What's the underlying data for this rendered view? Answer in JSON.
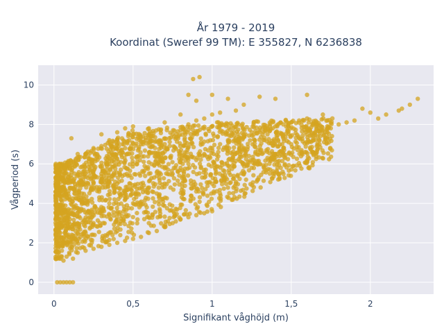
{
  "chart_data": {
    "type": "scatter",
    "title_lines": [
      "År 1979 - 2019",
      "Koordinat (Sweref 99 TM): E 355827, N 6236838"
    ],
    "xlabel": "Signifikant våghöjd (m)",
    "ylabel": "Vågperiod (s)",
    "xlim": [
      -0.1,
      2.4
    ],
    "ylim": [
      -0.6,
      11
    ],
    "x_ticks": [
      0,
      0.5,
      1,
      1.5,
      2
    ],
    "x_tick_labels": [
      "0",
      "0,5",
      "1",
      "1,5",
      "2"
    ],
    "y_ticks": [
      0,
      2,
      4,
      6,
      8,
      10
    ],
    "y_tick_labels": [
      "0",
      "2",
      "4",
      "6",
      "8",
      "10"
    ],
    "grid": true,
    "marker_color": "#D4A420",
    "marker_opacity": 0.75,
    "plot_background": "#E8E8F0",
    "series": [
      {
        "points": [
          [
            0.02,
            0
          ],
          [
            0.04,
            0
          ],
          [
            0.06,
            0
          ],
          [
            0.08,
            0
          ],
          [
            0.1,
            0
          ],
          [
            0.12,
            0
          ],
          [
            0.02,
            1.2
          ],
          [
            0.03,
            1.5
          ],
          [
            0.04,
            2.5
          ],
          [
            0.05,
            3.5
          ],
          [
            0.03,
            4.5
          ],
          [
            0.04,
            5.5
          ],
          [
            0.05,
            6
          ],
          [
            0.06,
            1.1
          ],
          [
            0.08,
            1.3
          ],
          [
            0.1,
            2.8
          ],
          [
            0.1,
            4.2
          ],
          [
            0.1,
            5.8
          ],
          [
            0.11,
            7.3
          ],
          [
            0.12,
            1.2
          ],
          [
            0.15,
            1.5
          ],
          [
            0.15,
            3
          ],
          [
            0.15,
            5
          ],
          [
            0.15,
            6.5
          ],
          [
            0.2,
            1.6
          ],
          [
            0.2,
            2.5
          ],
          [
            0.2,
            4
          ],
          [
            0.2,
            5.5
          ],
          [
            0.2,
            6.5
          ],
          [
            0.25,
            1.7
          ],
          [
            0.25,
            3
          ],
          [
            0.25,
            5
          ],
          [
            0.25,
            6.8
          ],
          [
            0.3,
            1.8
          ],
          [
            0.3,
            3.5
          ],
          [
            0.3,
            5.5
          ],
          [
            0.3,
            6.9
          ],
          [
            0.3,
            7.5
          ],
          [
            0.35,
            1.9
          ],
          [
            0.35,
            4
          ],
          [
            0.35,
            6.5
          ],
          [
            0.35,
            7.2
          ],
          [
            0.4,
            2
          ],
          [
            0.4,
            3.5
          ],
          [
            0.4,
            5
          ],
          [
            0.4,
            7
          ],
          [
            0.4,
            7.6
          ],
          [
            0.45,
            2.1
          ],
          [
            0.45,
            4.5
          ],
          [
            0.45,
            6.8
          ],
          [
            0.45,
            7.8
          ],
          [
            0.5,
            2.2
          ],
          [
            0.5,
            4
          ],
          [
            0.5,
            6
          ],
          [
            0.5,
            7.5
          ],
          [
            0.5,
            7.9
          ],
          [
            0.55,
            2.3
          ],
          [
            0.55,
            5
          ],
          [
            0.55,
            7
          ],
          [
            0.6,
            2.5
          ],
          [
            0.6,
            3
          ],
          [
            0.6,
            5.5
          ],
          [
            0.6,
            7.3
          ],
          [
            0.6,
            7.8
          ],
          [
            0.65,
            2.6
          ],
          [
            0.65,
            4.5
          ],
          [
            0.65,
            6.5
          ],
          [
            0.7,
            2.8
          ],
          [
            0.7,
            5
          ],
          [
            0.7,
            7
          ],
          [
            0.7,
            8.1
          ],
          [
            0.75,
            3
          ],
          [
            0.75,
            5.5
          ],
          [
            0.75,
            7.5
          ],
          [
            0.8,
            3.2
          ],
          [
            0.8,
            5.8
          ],
          [
            0.8,
            7.7
          ],
          [
            0.8,
            8.5
          ],
          [
            0.85,
            3.3
          ],
          [
            0.85,
            6
          ],
          [
            0.85,
            8
          ],
          [
            0.85,
            9.5
          ],
          [
            0.88,
            10.3
          ],
          [
            0.92,
            10.4
          ],
          [
            0.9,
            3.4
          ],
          [
            0.9,
            6.2
          ],
          [
            0.9,
            8.2
          ],
          [
            0.9,
            9.2
          ],
          [
            0.95,
            3.5
          ],
          [
            0.95,
            6.5
          ],
          [
            0.95,
            8.3
          ],
          [
            1.0,
            3.6
          ],
          [
            1.0,
            5
          ],
          [
            1.0,
            6.8
          ],
          [
            1.0,
            8.5
          ],
          [
            1.0,
            9.5
          ],
          [
            1.05,
            4.5
          ],
          [
            1.05,
            7
          ],
          [
            1.05,
            8.6
          ],
          [
            1.1,
            4.8
          ],
          [
            1.1,
            7.2
          ],
          [
            1.1,
            9.3
          ],
          [
            1.15,
            5
          ],
          [
            1.15,
            7.3
          ],
          [
            1.15,
            8.7
          ],
          [
            1.2,
            5.5
          ],
          [
            1.2,
            7.5
          ],
          [
            1.2,
            9
          ],
          [
            1.25,
            5.8
          ],
          [
            1.25,
            7.6
          ],
          [
            1.3,
            6
          ],
          [
            1.3,
            7.7
          ],
          [
            1.3,
            9.4
          ],
          [
            1.35,
            6.3
          ],
          [
            1.35,
            7.8
          ],
          [
            1.4,
            6.5
          ],
          [
            1.4,
            7.9
          ],
          [
            1.4,
            9.3
          ],
          [
            1.45,
            6.8
          ],
          [
            1.45,
            8
          ],
          [
            1.5,
            7
          ],
          [
            1.5,
            8.1
          ],
          [
            1.55,
            7.3
          ],
          [
            1.55,
            8.2
          ],
          [
            1.6,
            7.5
          ],
          [
            1.6,
            8.3
          ],
          [
            1.6,
            9.5
          ],
          [
            1.65,
            7.6
          ],
          [
            1.7,
            7.7
          ],
          [
            1.7,
            8.5
          ],
          [
            1.75,
            7.8
          ],
          [
            1.8,
            8
          ],
          [
            1.85,
            8.1
          ],
          [
            1.9,
            8.2
          ],
          [
            1.95,
            8.8
          ],
          [
            2.0,
            8.6
          ],
          [
            2.05,
            8.3
          ],
          [
            2.1,
            8.5
          ],
          [
            2.18,
            8.7
          ],
          [
            2.2,
            8.8
          ],
          [
            2.25,
            9
          ],
          [
            2.3,
            9.3
          ]
        ]
      }
    ]
  }
}
